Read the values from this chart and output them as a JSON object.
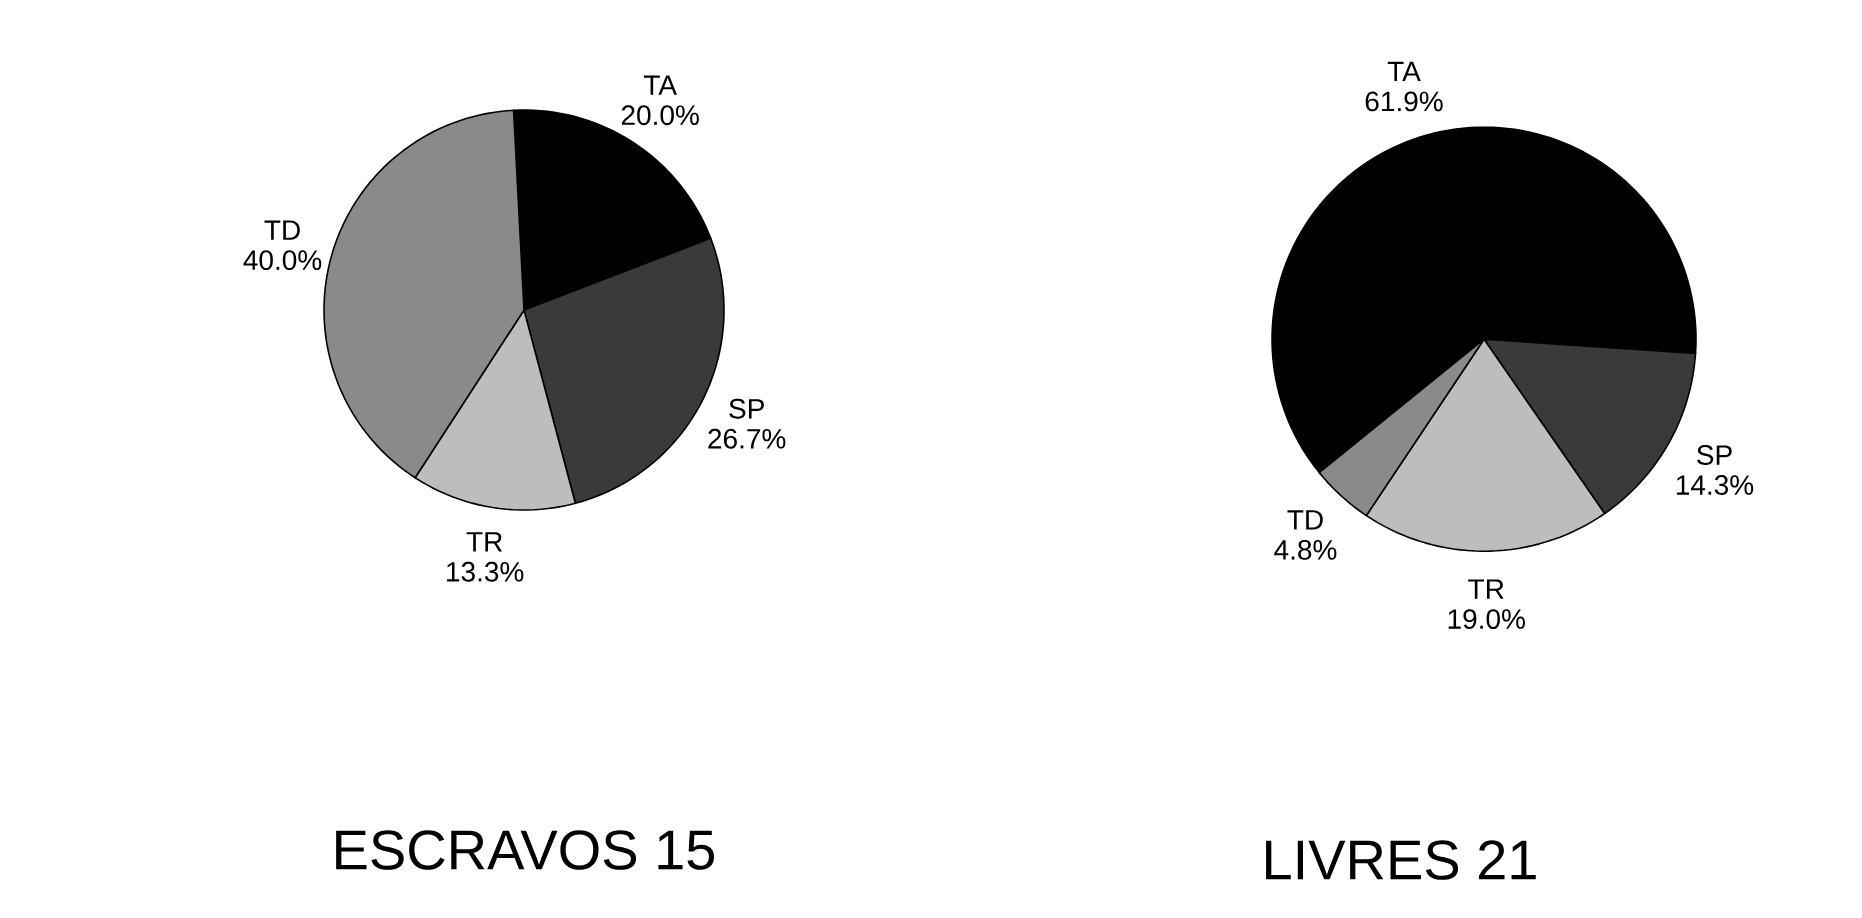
{
  "chart_data": [
    {
      "type": "pie",
      "title": "ESCRAVOS 15",
      "categories": [
        "TA",
        "SP",
        "TR",
        "TD"
      ],
      "values": [
        20.0,
        26.7,
        13.3,
        40.0
      ],
      "value_labels": [
        "20.0%",
        "26.7%",
        "13.3%",
        "40.0%"
      ],
      "colors": [
        "#000000",
        "#3a3a3a",
        "#bdbdbd",
        "#8a8a8a"
      ]
    },
    {
      "type": "pie",
      "title": "LIVRES 21",
      "categories": [
        "TA",
        "SP",
        "TR",
        "TD"
      ],
      "values": [
        61.9,
        14.3,
        19.0,
        4.8
      ],
      "value_labels": [
        "61.9%",
        "14.3%",
        "19.0%",
        "4.8%"
      ],
      "colors": [
        "#000000",
        "#3a3a3a",
        "#bdbdbd",
        "#8a8a8a"
      ]
    }
  ]
}
